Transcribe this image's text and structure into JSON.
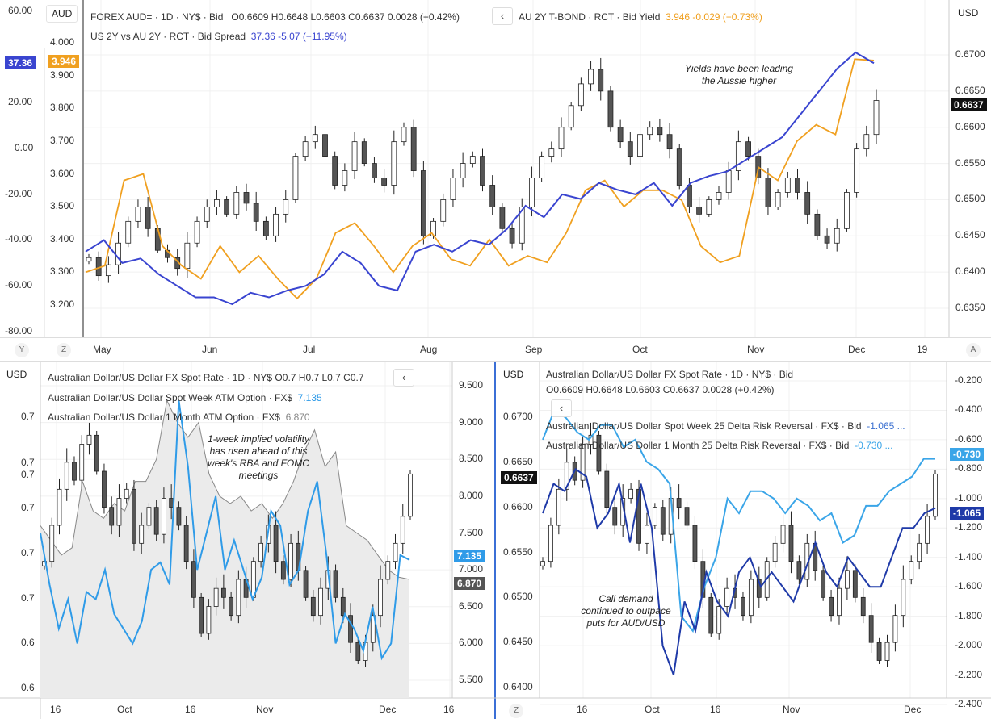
{
  "colors": {
    "up": "#ffffff",
    "down": "#555555",
    "yield": "#f0a020",
    "spread": "#3a45d0",
    "week_vol": "#2f9be8",
    "month_vol_fill": "#e6e6e6",
    "rr_week": "#1f3aa8",
    "rr_month": "#3aa5e8"
  },
  "top": {
    "currency_box": "AUD",
    "right_currency": "USD",
    "legend1": "FOREX AUD= · 1D · NY$ · Bid",
    "ohlc": "O0.6609  H0.6648  L0.6603  C0.6637  0.0028 (+0.42%)",
    "legend2_name": "AU 2Y T-BOND · RCT · Bid Yield",
    "legend2_value": "3.946  -0.029 (−0.73%)",
    "legend3_name": "US 2Y vs AU 2Y · RCT · Bid Spread",
    "legend3_value": "37.36  -5.07 (−11.95%)",
    "collapse_icon": "‹",
    "tag_spread": "37.36",
    "tag_yield": "3.946",
    "tag_price": "0.6637",
    "annotation_l1": "Yields have been leading",
    "annotation_l2": "the Aussie higher",
    "corner_y": "Y",
    "corner_z": "Z",
    "corner_a": "A"
  },
  "bl": {
    "currency_box": "USD",
    "legend1": "Australian Dollar/US Dollar FX Spot Rate · 1D · NY$   O0.7  H0.7  L0.7  C0.7",
    "legend2_name": "Australian Dollar/US Dollar Spot Week ATM Option · FX$",
    "legend2_value": "7.135",
    "legend3_name": "Australian Dollar/US Dollar 1 Month ATM Option · FX$",
    "legend3_value": "6.870",
    "collapse_icon": "‹",
    "tag_week": "7.135",
    "tag_month": "6.870",
    "annotation": [
      "1-week implied volatility",
      "has risen ahead of this",
      "week's RBA and FOMC",
      "meetings"
    ]
  },
  "br": {
    "currency_box": "USD",
    "legend1": "Australian Dollar/US Dollar FX Spot Rate · 1D · NY$ · Bid",
    "ohlc": "O0.6609  H0.6648  L0.6603  C0.6637  0.0028 (+0.42%)",
    "legend2_name": "Australian Dollar/US Dollar Spot Week 25 Delta Risk Reversal · FX$ · Bid",
    "legend2_value": "-1.065  ...",
    "legend3_name": "Australian Dollar/US Dollar 1 Month 25 Delta Risk Reversal · FX$ · Bid",
    "legend3_value": "-0.730  ...",
    "collapse_icon": "‹",
    "tag_price": "0.6637",
    "tag_month": "-0.730",
    "tag_week": "-1.065",
    "corner_z": "Z",
    "annotation": [
      "Call demand",
      "continued to outpace",
      "puts for AUD/USD"
    ]
  },
  "chart_data": [
    {
      "type": "candlestick+line",
      "title": "FOREX AUD= vs AU 2Y yield vs US-AU 2Y spread",
      "x_ticks": [
        "May",
        "Jun",
        "Jul",
        "Aug",
        "Sep",
        "Oct",
        "Nov",
        "Dec",
        "19"
      ],
      "y_right": {
        "label": "USD",
        "ticks": [
          "0.6700",
          "0.6650",
          "0.6600",
          "0.6550",
          "0.6500",
          "0.6450",
          "0.6400",
          "0.6350"
        ],
        "range": [
          0.635,
          0.67
        ]
      },
      "y_left_spread": {
        "ticks": [
          "60.00",
          "40.00",
          "20.00",
          "0.00",
          "-20.00",
          "-40.00",
          "-60.00",
          "-80.00"
        ],
        "range": [
          -80,
          60
        ]
      },
      "y_left_yield": {
        "label": "AUD",
        "ticks": [
          "4.000",
          "3.900",
          "3.800",
          "3.700",
          "3.600",
          "3.500",
          "3.400",
          "3.300",
          "3.200"
        ],
        "range": [
          3.2,
          4.0
        ]
      },
      "aud_close": [
        0.642,
        0.6395,
        0.641,
        0.644,
        0.647,
        0.649,
        0.646,
        0.643,
        0.642,
        0.6405,
        0.644,
        0.647,
        0.649,
        0.65,
        0.648,
        0.651,
        0.6495,
        0.647,
        0.645,
        0.648,
        0.65,
        0.656,
        0.658,
        0.659,
        0.656,
        0.652,
        0.654,
        0.658,
        0.655,
        0.653,
        0.652,
        0.658,
        0.66,
        0.654,
        0.645,
        0.647,
        0.65,
        0.653,
        0.655,
        0.656,
        0.652,
        0.649,
        0.646,
        0.644,
        0.649,
        0.653,
        0.656,
        0.657,
        0.66,
        0.663,
        0.666,
        0.668,
        0.665,
        0.66,
        0.658,
        0.656,
        0.659,
        0.66,
        0.659,
        0.657,
        0.652,
        0.649,
        0.648,
        0.65,
        0.651,
        0.654,
        0.658,
        0.656,
        0.653,
        0.649,
        0.651,
        0.653,
        0.651,
        0.648,
        0.645,
        0.644,
        0.646,
        0.651,
        0.657,
        0.659,
        0.6637
      ],
      "au2y_yield": [
        3.3,
        3.32,
        3.58,
        3.6,
        3.38,
        3.32,
        3.28,
        3.38,
        3.3,
        3.35,
        3.28,
        3.22,
        3.28,
        3.42,
        3.45,
        3.38,
        3.3,
        3.38,
        3.42,
        3.34,
        3.32,
        3.4,
        3.32,
        3.35,
        3.33,
        3.42,
        3.55,
        3.58,
        3.5,
        3.55,
        3.55,
        3.52,
        3.38,
        3.33,
        3.35,
        3.62,
        3.58,
        3.7,
        3.75,
        3.72,
        3.95,
        3.946
      ],
      "spread": [
        -45,
        -40,
        -50,
        -48,
        -55,
        -60,
        -65,
        -65,
        -68,
        -63,
        -65,
        -62,
        -60,
        -55,
        -45,
        -50,
        -60,
        -62,
        -45,
        -42,
        -45,
        -40,
        -42,
        -35,
        -25,
        -30,
        -20,
        -22,
        -15,
        -18,
        -20,
        -15,
        -25,
        -15,
        -12,
        -10,
        -5,
        0,
        5,
        15,
        25,
        35,
        42,
        37.36
      ]
    },
    {
      "type": "candlestick+area+line",
      "title": "AUD/USD implied volatility",
      "x_ticks": [
        "16",
        "Oct",
        "16",
        "Nov",
        "Dec",
        "16"
      ],
      "y_left_ticks": [
        "0.7",
        "0.7",
        "0.7",
        "0.7",
        "0.7",
        "0.7",
        "0.6",
        "0.6"
      ],
      "y_right": {
        "ticks": [
          "9.500",
          "9.000",
          "8.500",
          "8.000",
          "7.500",
          "7.000",
          "6.500",
          "6.000",
          "5.500"
        ],
        "range": [
          5.5,
          9.5
        ]
      },
      "week_atm": [
        7.5,
        6.8,
        6.2,
        6.6,
        6.0,
        6.7,
        6.6,
        7.0,
        6.4,
        6.2,
        6.0,
        6.3,
        7.0,
        7.1,
        6.8,
        9.3,
        8.4,
        7.0,
        7.5,
        8.0,
        7.0,
        7.4,
        7.0,
        6.6,
        6.9,
        7.8,
        7.6,
        6.8,
        7.0,
        7.8,
        8.2,
        7.2,
        6.0,
        6.4,
        6.2,
        5.9,
        6.5,
        5.8,
        6.0,
        7.2,
        7.135
      ],
      "month_atm": [
        7.6,
        7.4,
        7.2,
        7.3,
        8.2,
        7.8,
        7.7,
        7.9,
        7.8,
        8.2,
        8.2,
        8.5,
        9.3,
        9.0,
        8.8,
        9.0,
        8.3,
        8.0,
        7.9,
        8.0,
        7.8,
        7.9,
        7.7,
        7.9,
        8.2,
        8.6,
        8.9,
        8.4,
        8.6,
        7.6,
        7.5,
        7.4,
        7.2,
        7.0,
        6.9,
        6.87
      ]
    },
    {
      "type": "candlestick+line",
      "title": "AUD/USD 25 delta risk reversals",
      "x_ticks": [
        "16",
        "Oct",
        "16",
        "Nov",
        "Dec"
      ],
      "y_left": {
        "ticks": [
          "0.6700",
          "0.6650",
          "0.6600",
          "0.6550",
          "0.6500",
          "0.6450",
          "0.6400"
        ],
        "range": [
          0.64,
          0.67
        ]
      },
      "y_right": {
        "ticks": [
          "-0.200",
          "-0.400",
          "-0.600",
          "-0.800",
          "-1.000",
          "-1.200",
          "-1.400",
          "-1.600",
          "-1.800",
          "-2.000",
          "-2.200",
          "-2.400"
        ],
        "range": [
          -2.4,
          -0.2
        ]
      },
      "aud_close": [
        0.654,
        0.658,
        0.662,
        0.665,
        0.663,
        0.667,
        0.668,
        0.664,
        0.66,
        0.658,
        0.661,
        0.662,
        0.656,
        0.658,
        0.66,
        0.657,
        0.661,
        0.66,
        0.658,
        0.654,
        0.65,
        0.646,
        0.649,
        0.651,
        0.65,
        0.648,
        0.652,
        0.65,
        0.654,
        0.656,
        0.658,
        0.654,
        0.652,
        0.656,
        0.653,
        0.65,
        0.648,
        0.651,
        0.653,
        0.65,
        0.648,
        0.645,
        0.643,
        0.645,
        0.648,
        0.652,
        0.654,
        0.656,
        0.659,
        0.6637
      ],
      "rr_week": [
        -1.1,
        -0.9,
        -0.95,
        -0.8,
        -0.85,
        -1.2,
        -1.1,
        -0.9,
        -1.3,
        -0.9,
        -1.2,
        -2.0,
        -2.2,
        -1.7,
        -1.9,
        -1.5,
        -1.7,
        -1.8,
        -1.5,
        -1.4,
        -1.6,
        -1.5,
        -1.6,
        -1.7,
        -1.5,
        -1.3,
        -1.5,
        -1.6,
        -1.4,
        -1.5,
        -1.6,
        -1.6,
        -1.4,
        -1.2,
        -1.2,
        -1.1,
        -1.065
      ],
      "rr_month": [
        -0.6,
        -0.4,
        -0.45,
        -0.55,
        -0.6,
        -0.5,
        -0.5,
        -0.65,
        -0.6,
        -0.75,
        -0.8,
        -0.9,
        -1.8,
        -1.9,
        -1.6,
        -1.4,
        -1.0,
        -1.1,
        -0.95,
        -0.95,
        -1.0,
        -1.1,
        -1.0,
        -1.05,
        -1.15,
        -1.1,
        -1.3,
        -1.25,
        -1.05,
        -1.05,
        -0.95,
        -0.9,
        -0.85,
        -0.73,
        -0.73
      ]
    }
  ]
}
